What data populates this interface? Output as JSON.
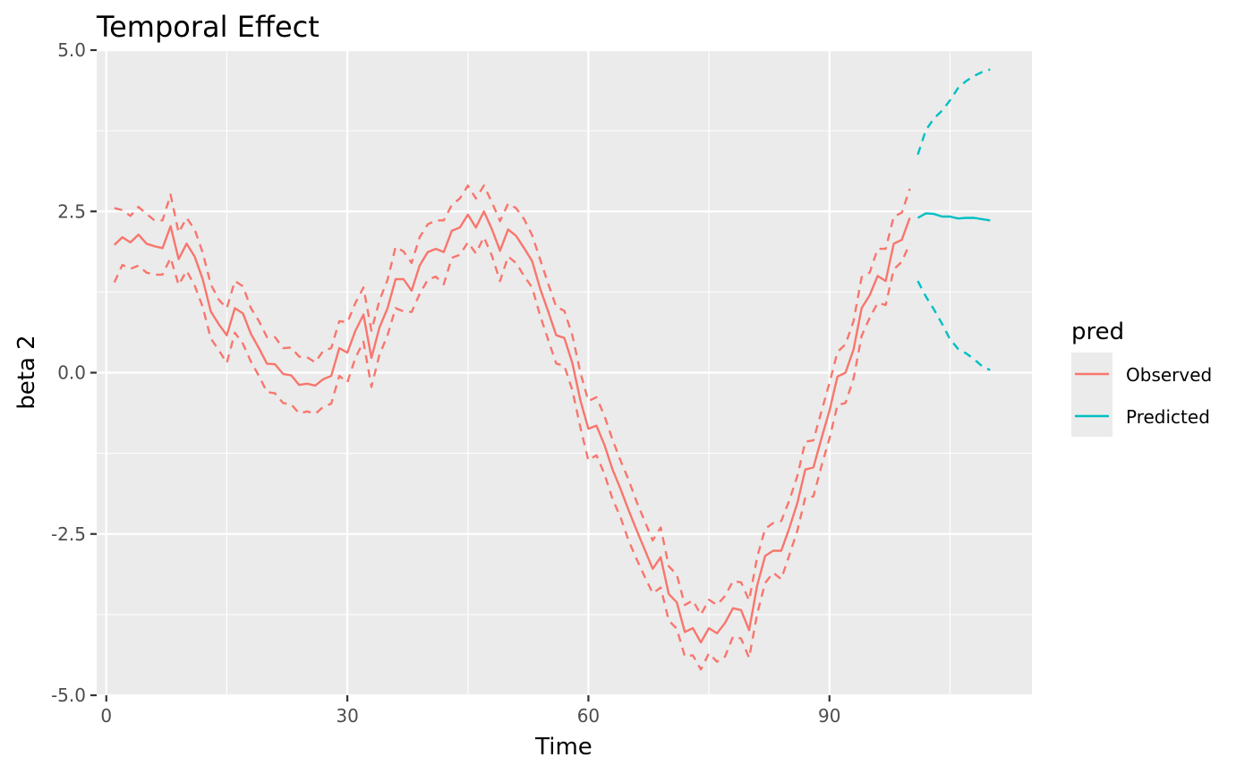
{
  "chart_data": {
    "type": "line",
    "title": "Temporal Effect",
    "xlabel": "Time",
    "ylabel": "beta 2",
    "xlim": [
      -1.2,
      115.2
    ],
    "ylim": [
      -5.0,
      5.0
    ],
    "x_ticks": [
      0,
      30,
      60,
      90
    ],
    "x_tick_labels": [
      "0",
      "30",
      "60",
      "90"
    ],
    "y_ticks": [
      -5.0,
      -2.5,
      0.0,
      2.5,
      5.0
    ],
    "y_tick_labels": [
      "-5.0",
      "-2.5",
      "0.0",
      "2.5",
      "5.0"
    ],
    "grid": true,
    "legend": {
      "title": "pred",
      "position": "right",
      "entries": [
        {
          "label": "Observed",
          "color": "#F8766D"
        },
        {
          "label": "Predicted",
          "color": "#00BFC4"
        }
      ]
    },
    "series": [
      {
        "name": "Observed",
        "color": "#F8766D",
        "x": [
          1,
          2,
          3,
          4,
          5,
          6,
          7,
          8,
          9,
          10,
          11,
          12,
          13,
          14,
          15,
          16,
          17,
          18,
          19,
          20,
          21,
          22,
          23,
          24,
          25,
          26,
          27,
          28,
          29,
          30,
          31,
          32,
          33,
          34,
          35,
          36,
          37,
          38,
          39,
          40,
          41,
          42,
          43,
          44,
          45,
          46,
          47,
          48,
          49,
          50,
          51,
          52,
          53,
          54,
          55,
          56,
          57,
          58,
          59,
          60,
          61,
          62,
          63,
          64,
          65,
          66,
          67,
          68,
          69,
          70,
          71,
          72,
          73,
          74,
          75,
          76,
          77,
          78,
          79,
          80,
          81,
          82,
          83,
          84,
          85,
          86,
          87,
          88,
          89,
          90,
          91,
          92,
          93,
          94,
          95,
          96,
          97,
          98,
          99,
          100
        ],
        "mean": [
          1.98,
          2.1,
          2.02,
          2.14,
          2.0,
          1.96,
          1.93,
          2.27,
          1.76,
          2.0,
          1.8,
          1.45,
          0.95,
          0.75,
          0.58,
          1.0,
          0.92,
          0.6,
          0.38,
          0.14,
          0.13,
          -0.02,
          -0.04,
          -0.19,
          -0.17,
          -0.2,
          -0.1,
          -0.05,
          0.38,
          0.31,
          0.65,
          0.9,
          0.23,
          0.7,
          1.0,
          1.45,
          1.45,
          1.27,
          1.66,
          1.87,
          1.92,
          1.87,
          2.2,
          2.25,
          2.45,
          2.25,
          2.5,
          2.22,
          1.89,
          2.22,
          2.12,
          1.93,
          1.73,
          1.3,
          0.95,
          0.58,
          0.54,
          0.15,
          -0.43,
          -0.87,
          -0.82,
          -1.12,
          -1.5,
          -1.8,
          -2.13,
          -2.44,
          -2.74,
          -3.04,
          -2.86,
          -3.43,
          -3.56,
          -4.02,
          -3.96,
          -4.18,
          -3.96,
          -4.04,
          -3.88,
          -3.65,
          -3.68,
          -3.99,
          -3.3,
          -2.84,
          -2.76,
          -2.76,
          -2.41,
          -2.02,
          -1.5,
          -1.47,
          -1.02,
          -0.59,
          -0.06,
          0.0,
          0.36,
          1.0,
          1.2,
          1.5,
          1.42,
          2.0,
          2.06,
          2.4
        ],
        "lower": [
          1.4,
          1.67,
          1.61,
          1.66,
          1.55,
          1.52,
          1.52,
          1.78,
          1.36,
          1.58,
          1.35,
          1.02,
          0.53,
          0.35,
          0.15,
          0.62,
          0.45,
          0.17,
          -0.05,
          -0.3,
          -0.32,
          -0.47,
          -0.49,
          -0.63,
          -0.6,
          -0.64,
          -0.53,
          -0.48,
          -0.05,
          -0.15,
          0.23,
          0.48,
          -0.22,
          0.28,
          0.58,
          1.0,
          0.95,
          0.94,
          1.22,
          1.44,
          1.49,
          1.37,
          1.78,
          1.83,
          2.02,
          1.85,
          2.1,
          1.81,
          1.42,
          1.8,
          1.7,
          1.5,
          1.32,
          0.88,
          0.51,
          0.14,
          0.11,
          -0.27,
          -0.85,
          -1.36,
          -1.28,
          -1.57,
          -1.96,
          -2.24,
          -2.6,
          -2.89,
          -3.16,
          -3.42,
          -3.33,
          -3.84,
          -3.97,
          -4.4,
          -4.38,
          -4.6,
          -4.35,
          -4.48,
          -4.4,
          -4.09,
          -4.12,
          -4.42,
          -3.74,
          -3.26,
          -3.1,
          -3.2,
          -2.83,
          -2.45,
          -1.93,
          -1.92,
          -1.45,
          -1.02,
          -0.5,
          -0.47,
          -0.09,
          0.57,
          0.85,
          1.08,
          1.05,
          1.6,
          1.72,
          2.0
        ],
        "upper": [
          2.55,
          2.52,
          2.43,
          2.57,
          2.46,
          2.36,
          2.36,
          2.76,
          2.17,
          2.4,
          2.22,
          1.86,
          1.37,
          1.13,
          1.0,
          1.42,
          1.34,
          1.0,
          0.8,
          0.55,
          0.55,
          0.38,
          0.39,
          0.25,
          0.24,
          0.16,
          0.34,
          0.38,
          0.8,
          0.78,
          1.08,
          1.32,
          0.65,
          1.12,
          1.44,
          1.95,
          1.88,
          1.7,
          2.1,
          2.3,
          2.36,
          2.36,
          2.6,
          2.7,
          2.9,
          2.7,
          2.9,
          2.64,
          2.35,
          2.62,
          2.55,
          2.38,
          2.13,
          1.75,
          1.38,
          1.02,
          0.96,
          0.58,
          0.0,
          -0.44,
          -0.38,
          -0.67,
          -1.04,
          -1.36,
          -1.66,
          -2.0,
          -2.3,
          -2.6,
          -2.4,
          -3.0,
          -3.13,
          -3.6,
          -3.53,
          -3.75,
          -3.52,
          -3.6,
          -3.46,
          -3.23,
          -3.25,
          -3.53,
          -2.86,
          -2.42,
          -2.33,
          -2.3,
          -1.98,
          -1.6,
          -1.07,
          -1.05,
          -0.6,
          -0.16,
          0.32,
          0.44,
          0.8,
          1.48,
          1.55,
          1.92,
          1.92,
          2.42,
          2.48,
          2.85
        ]
      },
      {
        "name": "Predicted",
        "color": "#00BFC4",
        "x": [
          101,
          102,
          103,
          104,
          105,
          106,
          107,
          108,
          109,
          110
        ],
        "mean": [
          2.4,
          2.47,
          2.46,
          2.42,
          2.42,
          2.39,
          2.4,
          2.4,
          2.38,
          2.36
        ],
        "lower": [
          1.42,
          1.18,
          0.98,
          0.76,
          0.52,
          0.37,
          0.3,
          0.21,
          0.1,
          0.04
        ],
        "upper": [
          3.38,
          3.76,
          3.94,
          4.06,
          4.22,
          4.41,
          4.52,
          4.6,
          4.66,
          4.7
        ]
      }
    ]
  }
}
